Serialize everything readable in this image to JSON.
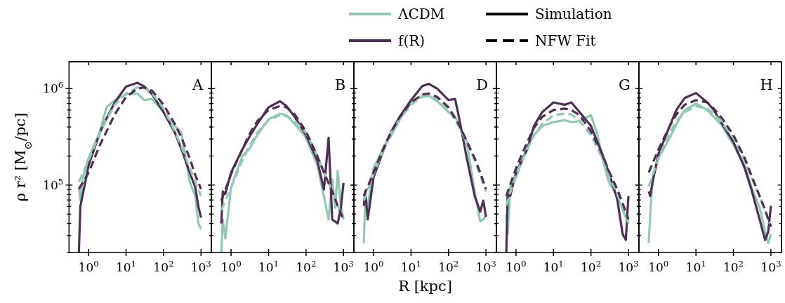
{
  "chart_data": [
    {
      "type": "line",
      "title": "A",
      "ylabel": "ρ r² [M$_{⊙}$/pc]",
      "legend": "top",
      "annotations": [
        "Simulation",
        "NFW Fit"
      ],
      "xlim": [
        0.3,
        1900
      ],
      "ylim": [
        20000,
        1900000
      ],
      "log": "xy",
      "xticks": [
        {
          "value": 1,
          "label": "10$^{0}$"
        },
        {
          "value": 10,
          "label": "10$^{1}$"
        },
        {
          "value": 100,
          "label": "10$^{2}$"
        },
        {
          "value": 1000,
          "label": "10$^{3}$"
        }
      ],
      "yticks": [
        {
          "value": 20000,
          "label": null
        },
        {
          "value": 30000,
          "label": null
        },
        {
          "value": 40000,
          "label": null
        },
        {
          "value": 50000,
          "label": null
        },
        {
          "value": 60000,
          "label": null
        },
        {
          "value": 70000,
          "label": null
        },
        {
          "value": 80000,
          "label": null
        },
        {
          "value": 90000,
          "label": null
        },
        {
          "value": 100000,
          "label": "10$^{5}$"
        },
        {
          "value": 200000,
          "label": null
        },
        {
          "value": 300000,
          "label": null
        },
        {
          "value": 400000,
          "label": null
        },
        {
          "value": 500000,
          "label": null
        },
        {
          "value": 600000,
          "label": null
        },
        {
          "value": 700000,
          "label": null
        },
        {
          "value": 800000,
          "label": null
        },
        {
          "value": 900000,
          "label": null
        },
        {
          "value": 1000000,
          "label": "10$^{6}$"
        }
      ],
      "series": [
        {
          "name": "ΛCDM",
          "color": "#93c8b2",
          "line_style": "solid",
          "x": [
            0.55,
            0.6,
            0.7,
            1,
            2,
            3,
            5,
            10,
            20,
            30,
            50,
            100,
            200,
            300,
            500,
            700,
            850,
            1000
          ],
          "values": [
            95000,
            69000,
            120000,
            190000,
            360000,
            640000,
            760000,
            870000,
            890000,
            760000,
            780000,
            570000,
            410000,
            350000,
            108000,
            77000,
            40000,
            35000
          ]
        },
        {
          "name": "f(R)",
          "color": "#4f2f56",
          "line_style": "solid",
          "x": [
            0.55,
            0.6,
            0.7,
            1,
            2,
            3,
            5,
            10,
            20,
            30,
            50,
            100,
            200,
            300,
            500,
            700,
            850,
            1000
          ],
          "values": [
            20000,
            60000,
            80000,
            160000,
            350000,
            490000,
            720000,
            1050000,
            1150000,
            1060000,
            870000,
            570000,
            350000,
            235000,
            135000,
            95000,
            60000,
            46000
          ]
        },
        {
          "color": "#93c8b2",
          "line_style": "dashed",
          "x": [
            0.55,
            1,
            2,
            3,
            5,
            10,
            20,
            30,
            50,
            100,
            200,
            300,
            500,
            700,
            1000
          ],
          "values": [
            108000,
            180000,
            350000,
            480000,
            680000,
            890000,
            1030000,
            1030000,
            890000,
            620000,
            360000,
            250000,
            150000,
            108000,
            77000
          ]
        },
        {
          "color": "#4f2f56",
          "line_style": "dashed",
          "x": [
            0.55,
            1,
            2,
            3,
            5,
            10,
            20,
            30,
            50,
            100,
            200,
            300,
            500,
            700,
            1000
          ],
          "values": [
            91000,
            135000,
            260000,
            360000,
            540000,
            820000,
            1000000,
            1030000,
            950000,
            680000,
            430000,
            310000,
            190000,
            127000,
            91000
          ]
        }
      ]
    },
    {
      "type": "line",
      "title": "B",
      "tick_labels": "x",
      "xlim": [
        0.3,
        1900
      ],
      "ylim": [
        20000,
        1900000
      ],
      "log": "xy",
      "xticks": [
        {
          "value": 1,
          "label": "10$^{0}$"
        },
        {
          "value": 10,
          "label": "10$^{1}$"
        },
        {
          "value": 100,
          "label": "10$^{2}$"
        },
        {
          "value": 1000,
          "label": "10$^{3}$"
        }
      ],
      "yticks": [
        {
          "value": 20000,
          "label": null
        },
        {
          "value": 30000,
          "label": null
        },
        {
          "value": 40000,
          "label": null
        },
        {
          "value": 50000,
          "label": null
        },
        {
          "value": 60000,
          "label": null
        },
        {
          "value": 70000,
          "label": null
        },
        {
          "value": 80000,
          "label": null
        },
        {
          "value": 90000,
          "label": null
        },
        {
          "value": 100000,
          "label": null
        },
        {
          "value": 200000,
          "label": null
        },
        {
          "value": 300000,
          "label": null
        },
        {
          "value": 400000,
          "label": null
        },
        {
          "value": 500000,
          "label": null
        },
        {
          "value": 600000,
          "label": null
        },
        {
          "value": 700000,
          "label": null
        },
        {
          "value": 800000,
          "label": null
        },
        {
          "value": 900000,
          "label": null
        },
        {
          "value": 1000000,
          "label": null
        }
      ],
      "series": [
        {
          "color": "#93c8b2",
          "line_style": "solid",
          "x": [
            0.55,
            0.6,
            0.7,
            1,
            2,
            3,
            5,
            10,
            20,
            30,
            50,
            100,
            200,
            300,
            400,
            500,
            600,
            700,
            850,
            1000
          ],
          "values": [
            20000,
            44000,
            28000,
            95000,
            200000,
            235000,
            330000,
            480000,
            550000,
            530000,
            430000,
            310000,
            160000,
            77000,
            44000,
            115000,
            58000,
            140000,
            61000,
            44000
          ]
        },
        {
          "color": "#4f2f56",
          "line_style": "solid",
          "x": [
            0.55,
            0.6,
            0.7,
            1,
            2,
            3,
            5,
            10,
            20,
            30,
            50,
            100,
            200,
            300,
            400,
            500,
            700,
            850,
            1000
          ],
          "values": [
            40000,
            86000,
            81000,
            135000,
            235000,
            310000,
            430000,
            640000,
            740000,
            660000,
            510000,
            330000,
            180000,
            90000,
            310000,
            44000,
            40000,
            58000,
            105000
          ]
        },
        {
          "color": "#93c8b2",
          "line_style": "dashed",
          "x": [
            0.55,
            1,
            2,
            3,
            5,
            10,
            20,
            30,
            50,
            100,
            200,
            300,
            500,
            700,
            1000
          ],
          "values": [
            55000,
            95000,
            180000,
            250000,
            350000,
            470000,
            530000,
            520000,
            460000,
            350000,
            200000,
            135000,
            86000,
            61000,
            44000
          ]
        },
        {
          "color": "#4f2f56",
          "line_style": "dashed",
          "x": [
            0.55,
            1,
            2,
            3,
            5,
            10,
            20,
            30,
            50,
            100,
            200,
            300,
            500,
            700,
            1000
          ],
          "values": [
            69000,
            130000,
            235000,
            330000,
            460000,
            600000,
            660000,
            640000,
            540000,
            360000,
            200000,
            135000,
            86000,
            61000,
            44000
          ]
        }
      ]
    },
    {
      "type": "line",
      "title": "D",
      "xlabel": "R [kpc]",
      "tick_labels": "x",
      "xlim": [
        0.3,
        1900
      ],
      "ylim": [
        20000,
        1900000
      ],
      "log": "xy",
      "xticks": [
        {
          "value": 1,
          "label": "10$^{0}$"
        },
        {
          "value": 10,
          "label": "10$^{1}$"
        },
        {
          "value": 100,
          "label": "10$^{2}$"
        },
        {
          "value": 1000,
          "label": "10$^{3}$"
        }
      ],
      "yticks": [
        {
          "value": 20000,
          "label": null
        },
        {
          "value": 30000,
          "label": null
        },
        {
          "value": 40000,
          "label": null
        },
        {
          "value": 50000,
          "label": null
        },
        {
          "value": 60000,
          "label": null
        },
        {
          "value": 70000,
          "label": null
        },
        {
          "value": 80000,
          "label": null
        },
        {
          "value": 90000,
          "label": null
        },
        {
          "value": 100000,
          "label": null
        },
        {
          "value": 200000,
          "label": null
        },
        {
          "value": 300000,
          "label": null
        },
        {
          "value": 400000,
          "label": null
        },
        {
          "value": 500000,
          "label": null
        },
        {
          "value": 600000,
          "label": null
        },
        {
          "value": 700000,
          "label": null
        },
        {
          "value": 800000,
          "label": null
        },
        {
          "value": 900000,
          "label": null
        },
        {
          "value": 1000000,
          "label": null
        }
      ],
      "series": [
        {
          "color": "#93c8b2",
          "line_style": "solid",
          "x": [
            0.55,
            0.6,
            0.7,
            1,
            2,
            3,
            5,
            10,
            20,
            30,
            50,
            100,
            150,
            200,
            300,
            500,
            700,
            850,
            1000
          ],
          "values": [
            25000,
            69000,
            61000,
            150000,
            260000,
            330000,
            480000,
            720000,
            840000,
            840000,
            740000,
            570000,
            510000,
            410000,
            290000,
            86000,
            42000,
            44000,
            49000
          ]
        },
        {
          "color": "#4f2f56",
          "line_style": "solid",
          "x": [
            0.55,
            0.6,
            0.7,
            1,
            2,
            3,
            5,
            10,
            20,
            30,
            50,
            100,
            150,
            200,
            300,
            500,
            700,
            850,
            1000
          ],
          "values": [
            61000,
            86000,
            44000,
            120000,
            250000,
            360000,
            510000,
            760000,
            1060000,
            1120000,
            1000000,
            760000,
            780000,
            460000,
            200000,
            77000,
            53000,
            69000,
            47000
          ]
        },
        {
          "color": "#93c8b2",
          "line_style": "dashed",
          "x": [
            0.55,
            1,
            2,
            3,
            5,
            10,
            20,
            30,
            50,
            100,
            200,
            300,
            500,
            700,
            1000
          ],
          "values": [
            69000,
            130000,
            250000,
            350000,
            480000,
            680000,
            820000,
            840000,
            780000,
            600000,
            390000,
            280000,
            180000,
            127000,
            86000
          ]
        },
        {
          "color": "#4f2f56",
          "line_style": "dashed",
          "x": [
            0.55,
            1,
            2,
            3,
            5,
            10,
            20,
            30,
            50,
            100,
            200,
            300,
            500,
            700,
            1000
          ],
          "values": [
            77000,
            135000,
            260000,
            360000,
            510000,
            720000,
            870000,
            890000,
            820000,
            640000,
            410000,
            290000,
            190000,
            135000,
            91000
          ]
        }
      ]
    },
    {
      "type": "line",
      "title": "G",
      "tick_labels": "x",
      "xlim": [
        0.3,
        1900
      ],
      "ylim": [
        20000,
        1900000
      ],
      "log": "xy",
      "xticks": [
        {
          "value": 1,
          "label": "10$^{0}$"
        },
        {
          "value": 10,
          "label": "10$^{1}$"
        },
        {
          "value": 100,
          "label": "10$^{2}$"
        },
        {
          "value": 1000,
          "label": "10$^{3}$"
        }
      ],
      "yticks": [
        {
          "value": 20000,
          "label": null
        },
        {
          "value": 30000,
          "label": null
        },
        {
          "value": 40000,
          "label": null
        },
        {
          "value": 50000,
          "label": null
        },
        {
          "value": 60000,
          "label": null
        },
        {
          "value": 70000,
          "label": null
        },
        {
          "value": 80000,
          "label": null
        },
        {
          "value": 90000,
          "label": null
        },
        {
          "value": 100000,
          "label": null
        },
        {
          "value": 200000,
          "label": null
        },
        {
          "value": 300000,
          "label": null
        },
        {
          "value": 400000,
          "label": null
        },
        {
          "value": 500000,
          "label": null
        },
        {
          "value": 600000,
          "label": null
        },
        {
          "value": 700000,
          "label": null
        },
        {
          "value": 800000,
          "label": null
        },
        {
          "value": 900000,
          "label": null
        },
        {
          "value": 1000000,
          "label": null
        }
      ],
      "series": [
        {
          "color": "#93c8b2",
          "line_style": "solid",
          "x": [
            0.55,
            0.6,
            0.7,
            1,
            2,
            3,
            5,
            10,
            20,
            30,
            50,
            100,
            150,
            200,
            300,
            500,
            700,
            1000
          ],
          "values": [
            49000,
            31000,
            95000,
            120000,
            250000,
            330000,
            410000,
            450000,
            470000,
            450000,
            460000,
            530000,
            330000,
            190000,
            108000,
            77000,
            55000,
            40000
          ]
        },
        {
          "color": "#4f2f56",
          "line_style": "solid",
          "x": [
            0.55,
            0.6,
            0.7,
            1,
            2,
            3,
            5,
            10,
            20,
            30,
            50,
            100,
            200,
            300,
            500,
            700,
            850,
            1000
          ],
          "values": [
            20000,
            81000,
            77000,
            135000,
            235000,
            410000,
            570000,
            720000,
            680000,
            720000,
            570000,
            410000,
            210000,
            135000,
            72000,
            31000,
            27000,
            77000
          ]
        },
        {
          "color": "#93c8b2",
          "line_style": "dashed",
          "x": [
            0.55,
            1,
            2,
            3,
            5,
            10,
            20,
            30,
            50,
            100,
            200,
            300,
            500,
            700,
            1000
          ],
          "values": [
            61000,
            130000,
            235000,
            330000,
            430000,
            530000,
            550000,
            540000,
            460000,
            330000,
            190000,
            127000,
            81000,
            58000,
            40000
          ]
        },
        {
          "color": "#4f2f56",
          "line_style": "dashed",
          "x": [
            0.55,
            1,
            2,
            3,
            5,
            10,
            20,
            30,
            50,
            100,
            200,
            300,
            500,
            700,
            1000
          ],
          "values": [
            77000,
            150000,
            280000,
            390000,
            510000,
            600000,
            620000,
            600000,
            530000,
            360000,
            210000,
            140000,
            91000,
            65000,
            44000
          ]
        }
      ]
    },
    {
      "type": "line",
      "title": "H",
      "tick_labels": "x",
      "xlim": [
        0.3,
        1900
      ],
      "ylim": [
        20000,
        1900000
      ],
      "log": "xy",
      "xticks": [
        {
          "value": 1,
          "label": "10$^{0}$"
        },
        {
          "value": 10,
          "label": "10$^{1}$"
        },
        {
          "value": 100,
          "label": "10$^{2}$"
        },
        {
          "value": 1000,
          "label": "10$^{3}$"
        }
      ],
      "yticks": [
        {
          "value": 20000,
          "label": null
        },
        {
          "value": 30000,
          "label": null
        },
        {
          "value": 40000,
          "label": null
        },
        {
          "value": 50000,
          "label": null
        },
        {
          "value": 60000,
          "label": null
        },
        {
          "value": 70000,
          "label": null
        },
        {
          "value": 80000,
          "label": null
        },
        {
          "value": 90000,
          "label": null
        },
        {
          "value": 100000,
          "label": null
        },
        {
          "value": 200000,
          "label": null
        },
        {
          "value": 300000,
          "label": null
        },
        {
          "value": 400000,
          "label": null
        },
        {
          "value": 500000,
          "label": null
        },
        {
          "value": 600000,
          "label": null
        },
        {
          "value": 700000,
          "label": null
        },
        {
          "value": 800000,
          "label": null
        },
        {
          "value": 900000,
          "label": null
        },
        {
          "value": 1000000,
          "label": null
        }
      ],
      "series": [
        {
          "color": "#93c8b2",
          "line_style": "solid",
          "x": [
            0.55,
            0.6,
            0.7,
            1,
            2,
            3,
            5,
            10,
            20,
            30,
            50,
            100,
            200,
            300,
            500,
            700,
            850,
            1000
          ],
          "values": [
            25000,
            49000,
            120000,
            190000,
            310000,
            430000,
            600000,
            700000,
            600000,
            510000,
            410000,
            260000,
            160000,
            95000,
            58000,
            33000,
            25000,
            31000
          ]
        },
        {
          "color": "#4f2f56",
          "line_style": "solid",
          "x": [
            0.55,
            0.6,
            0.7,
            1,
            2,
            3,
            5,
            10,
            20,
            30,
            50,
            100,
            200,
            300,
            500,
            700,
            850,
            1000
          ],
          "values": [
            86000,
            77000,
            108000,
            210000,
            410000,
            600000,
            800000,
            900000,
            720000,
            600000,
            430000,
            280000,
            150000,
            91000,
            44000,
            27000,
            33000,
            61000
          ]
        },
        {
          "color": "#93c8b2",
          "line_style": "dashed",
          "x": [
            0.55,
            1,
            2,
            3,
            5,
            10,
            20,
            30,
            50,
            100,
            200,
            300,
            500,
            700,
            1000
          ],
          "values": [
            97000,
            190000,
            350000,
            460000,
            570000,
            660000,
            620000,
            550000,
            440000,
            310000,
            180000,
            120000,
            77000,
            55000,
            37000
          ]
        },
        {
          "color": "#4f2f56",
          "line_style": "dashed",
          "x": [
            0.55,
            1,
            2,
            3,
            5,
            10,
            20,
            30,
            50,
            100,
            200,
            300,
            500,
            700,
            1000
          ],
          "values": [
            135000,
            235000,
            410000,
            540000,
            680000,
            760000,
            720000,
            620000,
            490000,
            330000,
            190000,
            127000,
            77000,
            55000,
            37000
          ]
        }
      ]
    }
  ]
}
